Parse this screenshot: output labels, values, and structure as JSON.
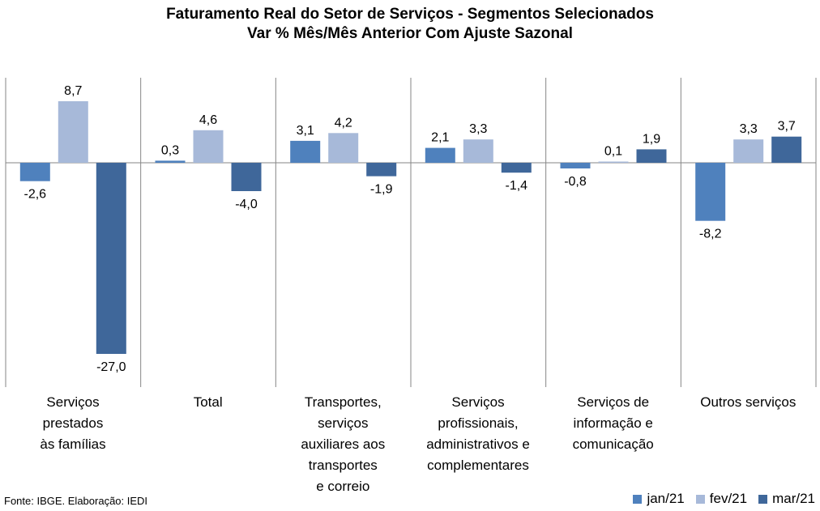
{
  "title": {
    "line1": "Faturamento Real do Setor de Serviços - Segmentos Selecionados",
    "line2": "Var % Mês/Mês Anterior Com Ajuste Sazonal"
  },
  "source": "Fonte: IBGE. Elaboração: IEDI",
  "chart_data": {
    "type": "bar",
    "title": "Faturamento Real do Setor de Serviços - Segmentos Selecionados",
    "subtitle": "Var % Mês/Mês Anterior Com Ajuste Sazonal",
    "categories": [
      "Serviços prestados às famílias",
      "Total",
      "Transportes, serviços auxiliares aos transportes e correio",
      "Serviços profissionais, administrativos e complementares",
      "Serviços de informação e comunicação",
      "Outros serviços"
    ],
    "category_lines": [
      [
        "Serviços",
        "prestados",
        "às famílias"
      ],
      [
        "Total"
      ],
      [
        "Transportes,",
        "serviços",
        "auxiliares aos",
        "transportes",
        "e correio"
      ],
      [
        "Serviços",
        "profissionais,",
        "administrativos e",
        "complementares"
      ],
      [
        "Serviços de",
        "informação e",
        "comunicação"
      ],
      [
        "Outros serviços"
      ]
    ],
    "series": [
      {
        "name": "jan/21",
        "color": "#4f81bd",
        "values": [
          -2.6,
          0.3,
          3.1,
          2.1,
          -0.8,
          -8.2
        ],
        "labels": [
          "-2,6",
          "0,3",
          "3,1",
          "2,1",
          "-0,8",
          "-8,2"
        ]
      },
      {
        "name": "fev/21",
        "color": "#a7b9d9",
        "values": [
          8.7,
          4.6,
          4.2,
          3.3,
          0.1,
          3.3
        ],
        "labels": [
          "8,7",
          "4,6",
          "4,2",
          "3,3",
          "0,1",
          "3,3"
        ]
      },
      {
        "name": "mar/21",
        "color": "#3f679a",
        "values": [
          -27.0,
          -4.0,
          -1.9,
          -1.4,
          1.9,
          3.7
        ],
        "labels": [
          "-27,0",
          "-4,0",
          "-1,9",
          "-1,4",
          "1,9",
          "3,7"
        ]
      }
    ],
    "xlabel": "",
    "ylabel": "",
    "ylim": [
      -30,
      12
    ],
    "legend_position": "bottom-right",
    "grid": false
  }
}
